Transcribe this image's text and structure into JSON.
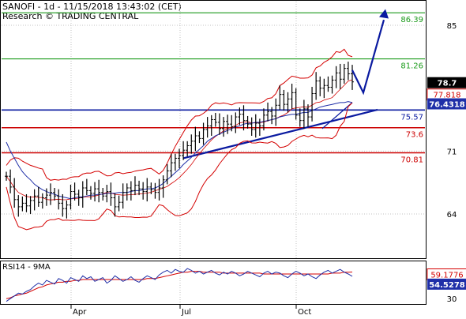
{
  "header": {
    "line1": "SANOFI - 1d - 11/15/2018 13:43:02 (CET)",
    "line2": "Research © TRADING CENTRAL"
  },
  "colors": {
    "price": "#000000",
    "bollinger": "#d40000",
    "ma": "#1f2fa8",
    "resistance": "#1a9a1a",
    "support_red": "#cc0000",
    "blue_level": "#0a1aa0",
    "arrow": "#0a1aa0",
    "label_black_bg": "#000000",
    "label_blue_bg": "#1f2fa8",
    "grid": "#c0c0c0"
  },
  "levels": {
    "green_high": "86.39",
    "green_mid": "81.26",
    "blue": "75.57",
    "red_mid": "73.6",
    "red_low": "70.81"
  },
  "price_labels": {
    "last": "78.7",
    "bollinger_mid": "77.818",
    "ma": "76.4318"
  },
  "rsi_labels": {
    "title": "RSI14 - 9MA",
    "ma_value": "59.1776",
    "rsi_value": "54.5278"
  },
  "chart_data": [
    {
      "type": "line",
      "title": "SANOFI - 1d",
      "y_ticks": [
        "85",
        "71",
        "64"
      ],
      "x_ticks": [
        "Apr",
        "Jul",
        "Oct"
      ],
      "ylim": [
        60.5,
        88.2
      ],
      "ohlc_description": "daily bars, Feb–Nov 2018",
      "series": [
        {
          "values": [
            68.2,
            67.0,
            65.6,
            64.8,
            65.2,
            64.9,
            65.5,
            66.0,
            65.3,
            65.8,
            66.1,
            66.4,
            66.0,
            65.2,
            64.6,
            65.0,
            66.5,
            66.2,
            65.8,
            66.9,
            66.6,
            66.3,
            66.8,
            66.4,
            66.0,
            66.5,
            65.8,
            64.8,
            65.3,
            66.4,
            66.9,
            66.6,
            67.2,
            66.8,
            66.5,
            67.0,
            66.7,
            66.4,
            66.9,
            67.8,
            68.8,
            69.7,
            70.2,
            70.5,
            71.1,
            71.6,
            72.1,
            72.7,
            72.4,
            73.4,
            73.8,
            74.5,
            74.2,
            73.5,
            74.3,
            74.0,
            73.7,
            74.8,
            75.1,
            74.4,
            74.0,
            73.4,
            74.1,
            73.8,
            75.0,
            75.4,
            74.9,
            76.1,
            77.3,
            76.2,
            76.8,
            77.5,
            75.0,
            74.4,
            75.7,
            74.8,
            77.4,
            78.8,
            78.0,
            78.3,
            78.1,
            78.9,
            79.7,
            79.0,
            80.2,
            79.6,
            78.7
          ],
          "high": 80.8,
          "low": 63.8
        },
        {
          "name": "",
          "values": [
            72.0,
            71.0,
            70.2,
            69.4,
            68.7,
            68.2,
            67.8,
            67.3,
            67.0,
            66.7,
            66.5,
            66.3,
            66.2,
            66.0,
            65.9,
            65.8,
            65.7,
            65.8,
            65.9,
            65.9,
            66.0,
            66.1,
            66.1,
            66.2,
            66.2,
            66.3,
            66.3,
            66.3,
            66.4,
            66.4,
            66.4,
            66.5,
            66.6,
            66.6,
            66.7,
            66.8,
            66.8,
            66.9,
            67.1,
            67.4,
            67.8,
            68.2,
            68.6,
            69.0,
            69.5,
            69.9,
            70.3,
            70.8,
            71.2,
            71.6,
            72.1,
            72.4,
            72.7,
            72.9,
            73.1,
            73.3,
            73.5,
            73.7,
            73.8,
            74.0,
            74.1,
            74.1,
            74.2,
            74.2,
            74.3,
            74.4,
            74.5,
            74.6,
            74.8,
            74.9,
            75.0,
            75.1,
            75.1,
            75.2,
            75.3,
            75.3,
            75.5,
            75.7,
            75.9,
            76.0,
            76.1,
            76.2,
            76.3,
            76.4,
            76.4,
            76.5,
            76.4
          ]
        }
      ]
    },
    {
      "type": "line",
      "title": "RSI14 - 9MA",
      "y_ticks": [
        "30"
      ],
      "ylim": [
        25,
        70
      ],
      "series": [
        {
          "values": [
            27,
            30,
            33,
            36,
            35,
            38,
            40,
            44,
            47,
            45,
            50,
            48,
            46,
            52,
            50,
            47,
            53,
            51,
            49,
            55,
            52,
            54,
            49,
            51,
            53,
            47,
            50,
            55,
            52,
            49,
            51,
            54,
            50,
            48,
            52,
            55,
            53,
            51,
            56,
            59,
            61,
            58,
            62,
            60,
            59,
            63,
            61,
            58,
            60,
            57,
            59,
            61,
            58,
            56,
            59,
            57,
            60,
            58,
            55,
            57,
            60,
            58,
            56,
            54,
            58,
            60,
            57,
            59,
            58,
            55,
            53,
            57,
            60,
            58,
            55,
            57,
            54,
            52,
            56,
            59,
            61,
            58,
            60,
            62,
            59,
            57,
            54.5
          ]
        },
        {
          "values": [
            30,
            31,
            33,
            34,
            35,
            36,
            38,
            40,
            42,
            43,
            45,
            46,
            47,
            48,
            48,
            49,
            49,
            50,
            50,
            51,
            51,
            51,
            51,
            51,
            51,
            51,
            51,
            51,
            51,
            51,
            51,
            51,
            51,
            51,
            51,
            52,
            52,
            52,
            53,
            54,
            55,
            56,
            57,
            58,
            59,
            59,
            60,
            60,
            60,
            59,
            59,
            59,
            59,
            59,
            58,
            58,
            58,
            58,
            58,
            58,
            58,
            58,
            58,
            58,
            57,
            57,
            57,
            57,
            57,
            57,
            57,
            57,
            57,
            57,
            57,
            57,
            57,
            57,
            57,
            57,
            57,
            58,
            58,
            58,
            59,
            59,
            59.2
          ]
        }
      ]
    }
  ]
}
